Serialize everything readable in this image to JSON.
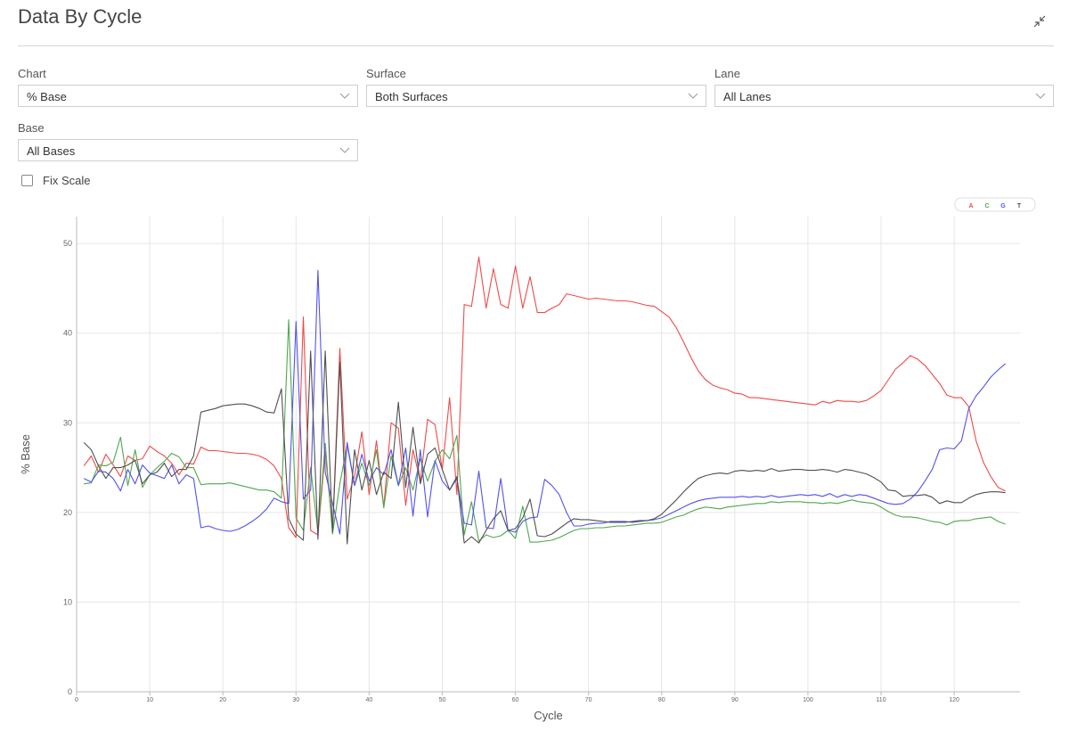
{
  "header": {
    "title": "Data By Cycle"
  },
  "filters": [
    {
      "label": "Chart",
      "value": "% Base"
    },
    {
      "label": "Surface",
      "value": "Both Surfaces"
    },
    {
      "label": "Lane",
      "value": "All Lanes"
    },
    {
      "label": "Base",
      "value": "All Bases"
    }
  ],
  "fix_scale": {
    "label": "Fix Scale",
    "checked": false
  },
  "chart_data": {
    "type": "line",
    "x_label": "Cycle",
    "y_label": "% Base",
    "xlim": [
      0,
      129
    ],
    "ylim": [
      0,
      53
    ],
    "xticks": [
      0,
      10,
      20,
      30,
      40,
      50,
      60,
      70,
      80,
      90,
      100,
      110,
      120
    ],
    "yticks": [
      0,
      10,
      20,
      30,
      40,
      50
    ],
    "grid": true,
    "legend": "top-right",
    "x": [
      1,
      2,
      3,
      4,
      5,
      6,
      7,
      8,
      9,
      10,
      11,
      12,
      13,
      14,
      15,
      16,
      17,
      18,
      19,
      20,
      21,
      22,
      23,
      24,
      25,
      26,
      27,
      28,
      29,
      30,
      31,
      32,
      33,
      34,
      35,
      36,
      37,
      38,
      39,
      40,
      41,
      42,
      43,
      44,
      45,
      46,
      47,
      48,
      49,
      50,
      51,
      52,
      53,
      54,
      55,
      56,
      57,
      58,
      59,
      60,
      61,
      62,
      63,
      64,
      65,
      66,
      67,
      68,
      69,
      70,
      71,
      72,
      73,
      74,
      75,
      76,
      77,
      78,
      79,
      80,
      81,
      82,
      83,
      84,
      85,
      86,
      87,
      88,
      89,
      90,
      91,
      92,
      93,
      94,
      95,
      96,
      97,
      98,
      99,
      100,
      101,
      102,
      103,
      104,
      105,
      106,
      107,
      108,
      109,
      110,
      111,
      112,
      113,
      114,
      115,
      116,
      117,
      118,
      119,
      120,
      121,
      122,
      123,
      124,
      125,
      126,
      127
    ],
    "series": [
      {
        "name": "A",
        "color": "#f04a4a",
        "values": [
          25.2,
          26.3,
          24.5,
          26.5,
          25.3,
          24.0,
          26.3,
          25.8,
          26.0,
          27.4,
          26.8,
          26.3,
          25.5,
          24.2,
          25.5,
          25.4,
          27.3,
          26.9,
          26.9,
          26.8,
          26.7,
          26.6,
          26.6,
          26.5,
          26.3,
          25.9,
          25.2,
          23.8,
          18.3,
          17.2,
          41.8,
          18.0,
          17.5,
          26.8,
          18.0,
          38.3,
          21.5,
          24.0,
          29.0,
          22.0,
          28.0,
          20.6,
          30.0,
          29.4,
          20.8,
          27.0,
          23.5,
          30.4,
          29.8,
          24.8,
          32.8,
          22.0,
          43.2,
          43.0,
          48.5,
          42.8,
          47.2,
          43.2,
          42.8,
          47.5,
          42.8,
          46.3,
          42.3,
          42.3,
          42.8,
          43.2,
          44.4,
          44.2,
          44.0,
          43.8,
          43.9,
          43.8,
          43.7,
          43.6,
          43.6,
          43.5,
          43.3,
          43.1,
          43.0,
          42.4,
          41.8,
          40.6,
          39.0,
          37.3,
          35.8,
          34.8,
          34.2,
          33.9,
          33.7,
          33.3,
          33.2,
          32.8,
          32.8,
          32.7,
          32.6,
          32.5,
          32.4,
          32.3,
          32.2,
          32.1,
          32.0,
          32.4,
          32.2,
          32.5,
          32.4,
          32.4,
          32.3,
          32.5,
          33.0,
          33.6,
          34.8,
          36.0,
          36.7,
          37.5,
          37.1,
          36.4,
          35.4,
          34.4,
          33.1,
          32.8,
          32.8,
          31.8,
          28.0,
          25.6,
          24.0,
          22.8,
          22.4
        ]
      },
      {
        "name": "C",
        "color": "#4fa84f",
        "values": [
          23.2,
          23.3,
          25.3,
          25.2,
          25.6,
          28.4,
          23.0,
          27.0,
          22.8,
          24.2,
          25.0,
          25.7,
          26.6,
          26.2,
          25.0,
          25.0,
          23.1,
          23.2,
          23.2,
          23.2,
          23.3,
          23.1,
          22.9,
          22.7,
          22.5,
          22.5,
          22.3,
          21.6,
          41.5,
          19.4,
          18.0,
          25.0,
          17.8,
          27.7,
          17.6,
          23.2,
          27.5,
          23.0,
          25.5,
          23.0,
          27.0,
          20.5,
          26.3,
          23.0,
          25.0,
          22.5,
          26.0,
          23.5,
          25.7,
          27.0,
          26.0,
          28.6,
          17.5,
          21.2,
          16.8,
          17.5,
          17.2,
          17.4,
          18.0,
          17.1,
          20.7,
          16.7,
          16.7,
          16.8,
          16.9,
          17.2,
          17.6,
          18.0,
          18.2,
          18.2,
          18.3,
          18.3,
          18.4,
          18.5,
          18.5,
          18.6,
          18.7,
          18.8,
          18.8,
          18.9,
          19.2,
          19.5,
          19.7,
          20.1,
          20.4,
          20.6,
          20.5,
          20.4,
          20.6,
          20.7,
          20.8,
          20.9,
          21.0,
          21.0,
          21.2,
          21.1,
          21.2,
          21.2,
          21.2,
          21.1,
          21.1,
          21.0,
          21.1,
          21.0,
          21.2,
          21.4,
          21.2,
          21.1,
          21.0,
          20.6,
          20.1,
          19.7,
          19.5,
          19.5,
          19.4,
          19.2,
          19.0,
          18.9,
          18.6,
          19.0,
          19.1,
          19.1,
          19.3,
          19.4,
          19.5,
          19.0,
          18.7
        ]
      },
      {
        "name": "G",
        "color": "#5252ee",
        "values": [
          23.8,
          23.4,
          24.6,
          24.5,
          23.8,
          22.4,
          24.8,
          23.2,
          25.3,
          24.4,
          24.1,
          23.8,
          25.3,
          23.2,
          24.2,
          23.8,
          18.3,
          18.5,
          18.2,
          18.0,
          17.9,
          18.1,
          18.5,
          19.0,
          19.6,
          20.4,
          21.6,
          21.2,
          21.0,
          41.3,
          21.5,
          22.5,
          47.0,
          24.5,
          21.0,
          17.6,
          27.8,
          23.0,
          26.5,
          23.5,
          25.0,
          24.2,
          27.0,
          23.0,
          27.2,
          19.6,
          27.0,
          19.5,
          25.8,
          23.5,
          22.5,
          23.8,
          18.8,
          18.6,
          24.6,
          18.3,
          18.2,
          23.8,
          18.0,
          17.8,
          19.0,
          19.4,
          19.5,
          23.7,
          23.0,
          22.0,
          20.0,
          18.5,
          18.5,
          18.7,
          18.8,
          18.8,
          19.0,
          19.0,
          19.0,
          18.9,
          19.0,
          19.1,
          19.2,
          19.4,
          19.8,
          20.2,
          20.6,
          21.0,
          21.3,
          21.5,
          21.6,
          21.7,
          21.7,
          21.7,
          21.8,
          21.7,
          21.8,
          21.7,
          21.9,
          21.7,
          21.8,
          21.9,
          22.0,
          21.9,
          22.0,
          21.8,
          22.1,
          21.7,
          22.0,
          21.8,
          22.0,
          21.9,
          21.6,
          21.3,
          21.0,
          20.9,
          21.0,
          21.5,
          22.3,
          23.5,
          24.8,
          27.0,
          27.2,
          27.1,
          28.0,
          31.6,
          33.0,
          34.0,
          35.1,
          35.9,
          36.6
        ]
      },
      {
        "name": "T",
        "color": "#505050",
        "values": [
          27.8,
          27.0,
          25.2,
          23.8,
          25.0,
          25.0,
          25.3,
          25.8,
          23.2,
          24.2,
          24.5,
          25.5,
          24.0,
          24.8,
          24.8,
          26.3,
          31.2,
          31.4,
          31.6,
          31.9,
          32.0,
          32.1,
          32.1,
          31.9,
          31.6,
          31.2,
          31.1,
          33.8,
          19.3,
          17.6,
          16.9,
          38.0,
          17.0,
          38.0,
          17.8,
          36.8,
          16.5,
          27.0,
          22.5,
          25.8,
          22.0,
          24.5,
          23.8,
          32.3,
          22.8,
          29.5,
          23.2,
          26.5,
          27.2,
          24.8,
          22.5,
          24.0,
          16.6,
          17.3,
          16.6,
          18.0,
          19.3,
          20.2,
          18.0,
          18.2,
          19.4,
          21.5,
          17.4,
          17.3,
          17.6,
          18.2,
          18.8,
          19.3,
          19.2,
          19.2,
          19.1,
          19.0,
          18.9,
          18.9,
          18.9,
          19.0,
          19.1,
          19.1,
          19.3,
          19.8,
          20.6,
          21.4,
          22.3,
          23.1,
          23.8,
          24.1,
          24.3,
          24.4,
          24.3,
          24.6,
          24.7,
          24.6,
          24.7,
          24.6,
          24.9,
          24.6,
          24.7,
          24.8,
          24.8,
          24.7,
          24.7,
          24.8,
          24.7,
          24.5,
          24.8,
          24.7,
          24.5,
          24.3,
          23.9,
          23.4,
          22.5,
          22.4,
          21.8,
          21.9,
          21.9,
          22.0,
          21.7,
          21.0,
          21.3,
          21.1,
          21.1,
          21.6,
          22.0,
          22.2,
          22.3,
          22.3,
          22.2
        ]
      }
    ]
  }
}
